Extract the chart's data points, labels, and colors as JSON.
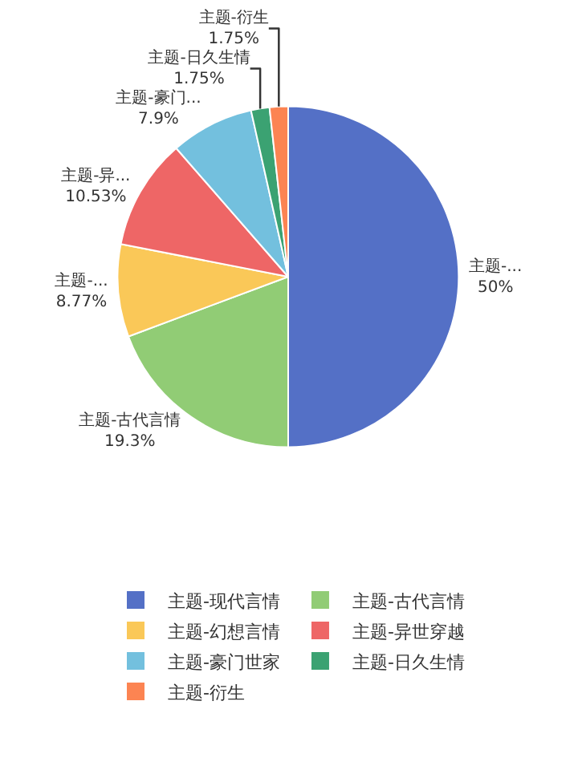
{
  "chart_data": {
    "type": "pie",
    "categories": [
      "主题-现代言情",
      "主题-古代言情",
      "主题-幻想言情",
      "主题-异世穿越",
      "主题-豪门世家",
      "主题-日久生情",
      "主题-衍生"
    ],
    "values": [
      50,
      19.3,
      8.77,
      10.53,
      7.9,
      1.75,
      1.75
    ],
    "value_labels": [
      "主题-...\n50%",
      "主题-古代言情\n19.3%",
      "主题-...\n8.77%",
      "主题-异...\n10.53%",
      "主题-豪门...\n7.9%",
      "主题-日久生情\n1.75%",
      "主题-衍生\n1.75%"
    ],
    "colors": [
      "#5470c6",
      "#91cc75",
      "#fac858",
      "#ee6666",
      "#73c0de",
      "#3ba272",
      "#fc8452"
    ],
    "legend": "bottom"
  }
}
